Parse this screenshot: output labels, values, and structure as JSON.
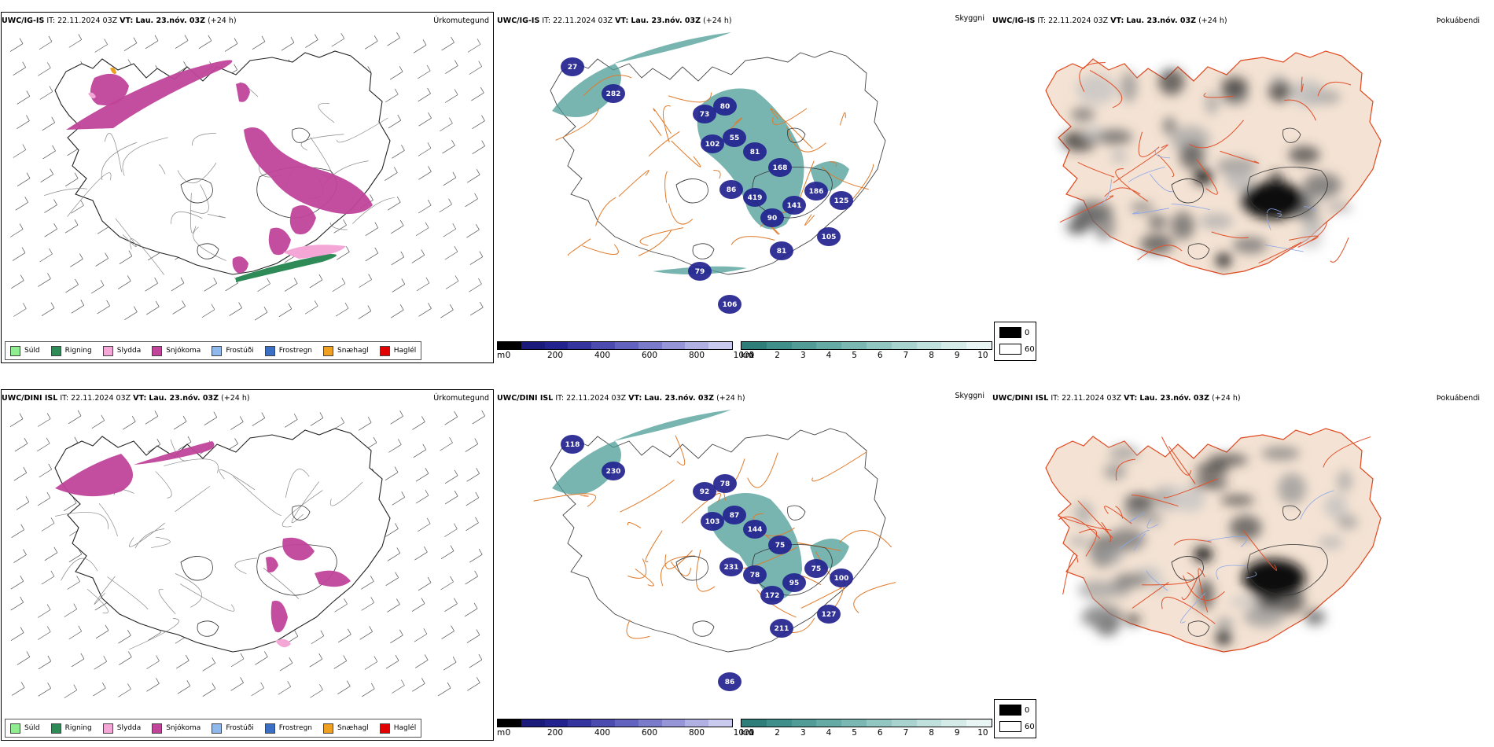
{
  "rows": [
    {
      "model": "UWC/IG-IS",
      "it_label": "IT:",
      "it_value": "22.11.2024 03Z",
      "vt_label": "VT:",
      "vt_value": "Lau. 23.nóv. 03Z",
      "lead": "(+24 h)",
      "visibility_values": [
        "27",
        "282",
        "73",
        "80",
        "55",
        "102",
        "81",
        "168",
        "86",
        "419",
        "90",
        "141",
        "186",
        "125",
        "105",
        "81",
        "106",
        "79"
      ]
    },
    {
      "model": "UWC/DINI ISL",
      "it_label": "IT:",
      "it_value": "22.11.2024 03Z",
      "vt_label": "VT:",
      "vt_value": "Lau. 23.nóv. 03Z",
      "lead": "(+24 h)",
      "visibility_values": [
        "118",
        "230",
        "92",
        "78",
        "87",
        "103",
        "144",
        "75",
        "231",
        "78",
        "172",
        "95",
        "75",
        "100",
        "127",
        "211",
        "86"
      ]
    }
  ],
  "panel_titles": {
    "precip_type": "Úrkomutegund",
    "visibility": "Skyggni",
    "fog": "Þokuábendi"
  },
  "precip_legend": [
    {
      "label": "Súld",
      "color": "#90ee90"
    },
    {
      "label": "Rigning",
      "color": "#2e8b57"
    },
    {
      "label": "Slydda",
      "color": "#f4a6d7"
    },
    {
      "label": "Snjókoma",
      "color": "#c0449a"
    },
    {
      "label": "Frostúði",
      "color": "#8fb8ec"
    },
    {
      "label": "Frostregn",
      "color": "#3a6fc4"
    },
    {
      "label": "Snæhagl",
      "color": "#f0a020"
    },
    {
      "label": "Haglél",
      "color": "#e00000"
    }
  ],
  "height_bar": {
    "unit": "m",
    "ticks": [
      "0",
      "200",
      "400",
      "600",
      "800",
      "1000"
    ],
    "tick_values": [
      0,
      200,
      400,
      600,
      800,
      1000
    ],
    "max": 1000,
    "colors": [
      "#000000",
      "#1a1a7a",
      "#23238f",
      "#3535a0",
      "#4b4bb0",
      "#6262bf",
      "#7b7bcc",
      "#9595d8",
      "#b0b0e3",
      "#cacaee"
    ]
  },
  "distance_bar": {
    "unit": "km",
    "ticks": [
      "1",
      "2",
      "3",
      "4",
      "5",
      "6",
      "7",
      "8",
      "9",
      "10"
    ],
    "tick_values": [
      1,
      2,
      3,
      4,
      5,
      6,
      7,
      8,
      9,
      10
    ],
    "min": 1,
    "max": 10.8,
    "colors": [
      "#2e7f7a",
      "#3f8f8a",
      "#529c97",
      "#66aaa5",
      "#7bb8b3",
      "#91c6c1",
      "#a8d3cf",
      "#bfe0dc",
      "#d5ebe8",
      "#e9f5f3"
    ]
  },
  "fog_legend": {
    "high": "0",
    "low": "60"
  },
  "colors": {
    "snow": "#c0449a",
    "sleet": "#f4a6d7",
    "rain": "#2e8b57",
    "teal": "#4c9c96",
    "blue": "#23238f",
    "road": "#e07a2a",
    "land": "#f4e3d4",
    "coast": "#e0481f"
  }
}
